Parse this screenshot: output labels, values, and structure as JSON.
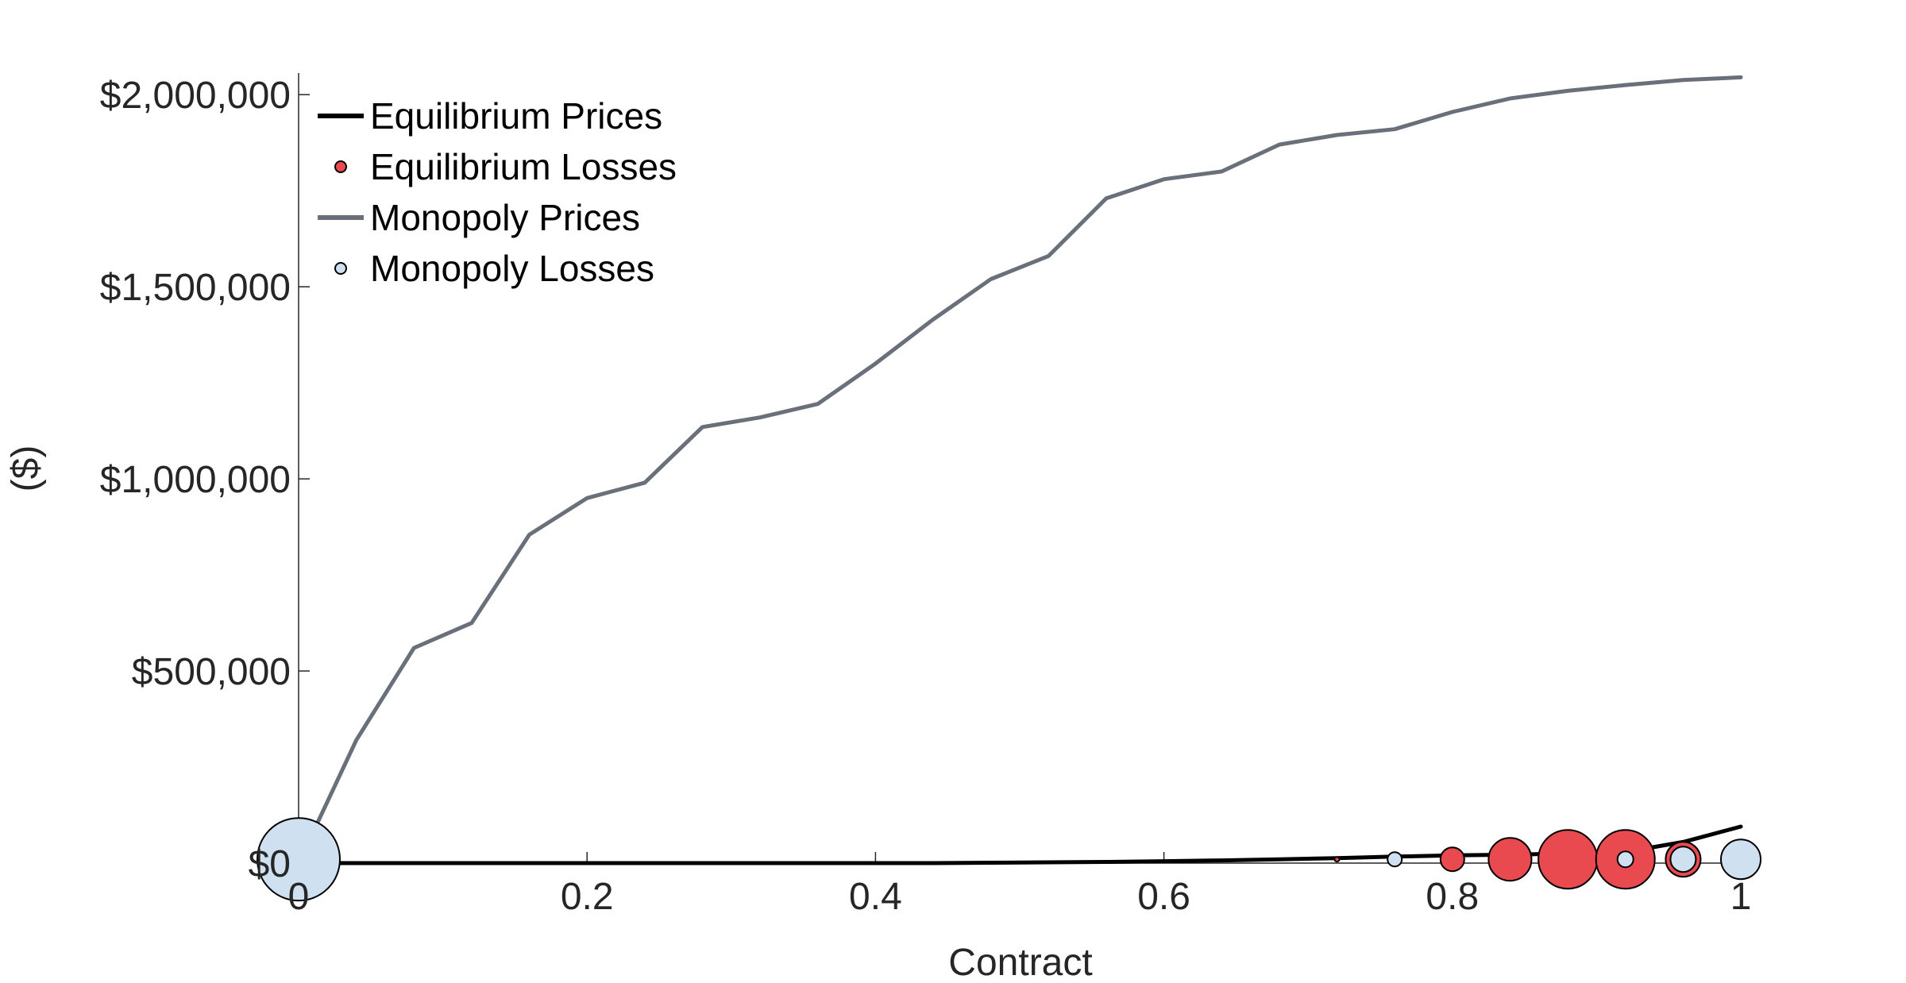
{
  "chart_data": {
    "type": "line",
    "title": "",
    "xlabel": "Contract",
    "ylabel": "($)",
    "xlim": [
      0,
      1
    ],
    "ylim": [
      0,
      2050000
    ],
    "grid": false,
    "legend_position": "top-left",
    "x_ticks": [
      {
        "value": 0,
        "label": "0"
      },
      {
        "value": 0.2,
        "label": "0.2"
      },
      {
        "value": 0.4,
        "label": "0.4"
      },
      {
        "value": 0.6,
        "label": "0.6"
      },
      {
        "value": 0.8,
        "label": "0.8"
      },
      {
        "value": 1,
        "label": "1"
      }
    ],
    "y_ticks": [
      {
        "value": 0,
        "label": "$0"
      },
      {
        "value": 500000,
        "label": "$500,000"
      },
      {
        "value": 1000000,
        "label": "$1,000,000"
      },
      {
        "value": 1500000,
        "label": "$1,500,000"
      },
      {
        "value": 2000000,
        "label": "$2,000,000"
      }
    ],
    "series": [
      {
        "name": "Equilibrium Prices",
        "kind": "line",
        "color": "#000000",
        "x": [
          0,
          0.04,
          0.08,
          0.12,
          0.16,
          0.2,
          0.24,
          0.28,
          0.32,
          0.36,
          0.4,
          0.44,
          0.48,
          0.52,
          0.56,
          0.6,
          0.64,
          0.68,
          0.72,
          0.76,
          0.8,
          0.84,
          0.88,
          0.92,
          0.96,
          1
        ],
        "y": [
          0,
          0,
          0,
          0,
          0,
          0,
          0,
          0,
          0,
          0,
          0,
          0,
          1000,
          2000,
          3000,
          5000,
          7000,
          10000,
          13000,
          17000,
          20000,
          22000,
          25000,
          29000,
          55000,
          95000
        ]
      },
      {
        "name": "Equilibrium Losses",
        "kind": "bubble",
        "color": "#e84a4f",
        "points": [
          {
            "x": 0.72,
            "y": 10000,
            "size": 3
          },
          {
            "x": 0.8,
            "y": 10000,
            "size": 15
          },
          {
            "x": 0.84,
            "y": 10000,
            "size": 27
          },
          {
            "x": 0.88,
            "y": 10000,
            "size": 37
          },
          {
            "x": 0.92,
            "y": 10000,
            "size": 37
          },
          {
            "x": 0.96,
            "y": 10000,
            "size": 22
          }
        ]
      },
      {
        "name": "Monopoly Prices",
        "kind": "line",
        "color": "#697079",
        "x": [
          0,
          0.04,
          0.08,
          0.12,
          0.16,
          0.2,
          0.24,
          0.28,
          0.32,
          0.36,
          0.4,
          0.44,
          0.48,
          0.52,
          0.56,
          0.6,
          0.64,
          0.68,
          0.72,
          0.76,
          0.8,
          0.84,
          0.88,
          0.92,
          0.96,
          1
        ],
        "y": [
          0,
          320000,
          560000,
          625000,
          855000,
          950000,
          990000,
          1135000,
          1160000,
          1195000,
          1300000,
          1415000,
          1520000,
          1580000,
          1730000,
          1780000,
          1800000,
          1870000,
          1895000,
          1910000,
          1955000,
          1990000,
          2010000,
          2025000,
          2038000,
          2045000
        ]
      },
      {
        "name": "Monopoly Losses",
        "kind": "bubble",
        "color": "#cfe0f1",
        "points": [
          {
            "x": 0,
            "y": 10000,
            "size": 52
          },
          {
            "x": 0.76,
            "y": 10000,
            "size": 9
          },
          {
            "x": 0.92,
            "y": 10000,
            "size": 10
          },
          {
            "x": 0.96,
            "y": 10000,
            "size": 16
          },
          {
            "x": 1,
            "y": 10000,
            "size": 25
          }
        ]
      }
    ]
  }
}
